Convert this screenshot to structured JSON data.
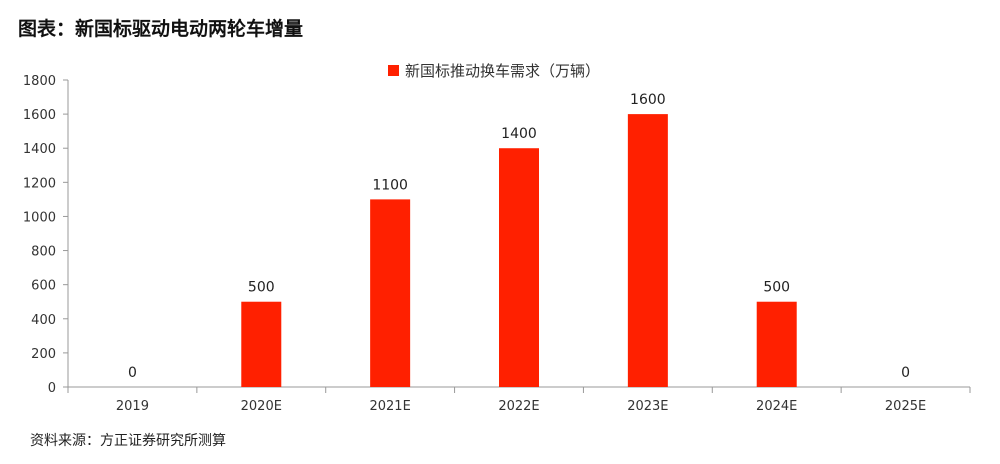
{
  "figure_title": "图表：新国标驱动电动两轮车增量",
  "source_note": "资料来源：方正证券研究所测算",
  "colors": {
    "bar": "#FF2000",
    "axis": "#999999"
  },
  "chart_data": {
    "type": "bar",
    "categories": [
      "2019",
      "2020E",
      "2021E",
      "2022E",
      "2023E",
      "2024E",
      "2025E"
    ],
    "series": [
      {
        "name": "新国标推动换车需求（万辆）",
        "values": [
          0,
          500,
          1100,
          1400,
          1600,
          500,
          0
        ]
      }
    ],
    "ylim": [
      0,
      1800
    ],
    "yticks": [
      0,
      200,
      400,
      600,
      800,
      1000,
      1200,
      1400,
      1600,
      1800
    ],
    "data_labels": true,
    "legend_position": "top-center",
    "grid": false
  }
}
